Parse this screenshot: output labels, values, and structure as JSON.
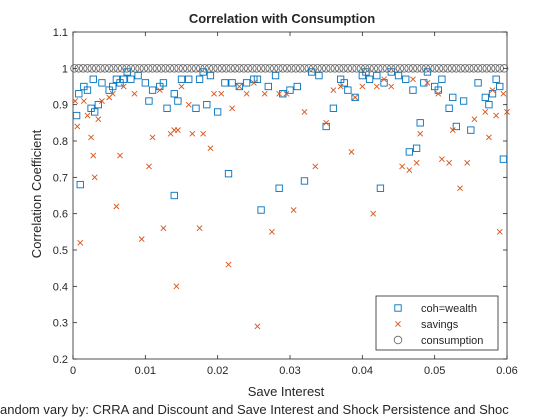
{
  "chart_data": {
    "type": "scatter",
    "title": "Correlation with Consumption",
    "xlabel": "Save Interest",
    "ylabel": "Correlation Coefficient",
    "footnote": "andom vary by: CRRA and Discount and Save Interest and Shock Persistence and Shoc",
    "xlim": [
      0,
      0.06
    ],
    "ylim": [
      0.2,
      1.1
    ],
    "xticks": [
      0,
      0.01,
      0.02,
      0.03,
      0.04,
      0.05,
      0.06
    ],
    "xtick_labels": [
      "0",
      "0.01",
      "0.02",
      "0.03",
      "0.04",
      "0.05",
      "0.06"
    ],
    "yticks": [
      0.2,
      0.3,
      0.4,
      0.5,
      0.6,
      0.7,
      0.8,
      0.9,
      1.0,
      1.1
    ],
    "ytick_labels": [
      "0.2",
      "0.3",
      "0.4",
      "0.5",
      "0.6",
      "0.7",
      "0.8",
      "0.9",
      "1",
      "1.1"
    ],
    "grid": false,
    "legend_position": "bottom-right",
    "series": [
      {
        "name": "coh=wealth",
        "marker": "square",
        "color": "#0072BD",
        "x": [
          0.0005,
          0.0008,
          0.001,
          0.0015,
          0.002,
          0.0025,
          0.0028,
          0.003,
          0.0035,
          0.004,
          0.005,
          0.0055,
          0.006,
          0.0065,
          0.007,
          0.0075,
          0.008,
          0.009,
          0.01,
          0.0105,
          0.011,
          0.012,
          0.0125,
          0.013,
          0.014,
          0.014,
          0.0145,
          0.015,
          0.016,
          0.017,
          0.0175,
          0.018,
          0.0185,
          0.019,
          0.02,
          0.021,
          0.0215,
          0.022,
          0.023,
          0.024,
          0.025,
          0.0255,
          0.026,
          0.027,
          0.028,
          0.0285,
          0.029,
          0.03,
          0.031,
          0.032,
          0.033,
          0.034,
          0.035,
          0.036,
          0.037,
          0.0375,
          0.038,
          0.039,
          0.04,
          0.0405,
          0.041,
          0.042,
          0.0425,
          0.043,
          0.044,
          0.045,
          0.046,
          0.0465,
          0.047,
          0.0475,
          0.048,
          0.0485,
          0.049,
          0.05,
          0.0505,
          0.051,
          0.052,
          0.0525,
          0.053,
          0.054,
          0.055,
          0.056,
          0.057,
          0.0575,
          0.058,
          0.0585,
          0.059,
          0.0595
        ],
        "y": [
          0.87,
          0.93,
          0.68,
          0.95,
          0.94,
          0.89,
          0.97,
          0.88,
          0.9,
          0.96,
          0.94,
          0.95,
          0.97,
          0.96,
          0.97,
          0.99,
          0.97,
          0.98,
          0.96,
          0.91,
          0.94,
          0.95,
          0.96,
          0.89,
          0.65,
          0.93,
          0.91,
          0.97,
          0.97,
          0.89,
          0.97,
          0.99,
          0.9,
          0.98,
          0.88,
          0.96,
          0.71,
          0.96,
          0.95,
          0.96,
          0.97,
          0.97,
          0.61,
          0.95,
          0.98,
          0.67,
          0.93,
          0.94,
          0.95,
          0.69,
          0.99,
          0.98,
          0.84,
          0.89,
          0.97,
          0.96,
          0.94,
          0.92,
          0.98,
          0.99,
          0.97,
          0.98,
          0.67,
          0.96,
          0.99,
          0.98,
          0.97,
          0.77,
          0.94,
          0.78,
          0.85,
          0.96,
          0.99,
          0.95,
          0.94,
          0.97,
          0.89,
          0.92,
          0.84,
          0.91,
          0.83,
          0.96,
          0.92,
          0.9,
          0.93,
          0.97,
          0.95,
          0.75
        ]
      },
      {
        "name": "savings",
        "marker": "x",
        "color": "#D95319",
        "x": [
          0.0003,
          0.0006,
          0.001,
          0.0015,
          0.002,
          0.0025,
          0.0028,
          0.003,
          0.0035,
          0.004,
          0.005,
          0.0055,
          0.006,
          0.0065,
          0.007,
          0.0085,
          0.0095,
          0.0105,
          0.011,
          0.012,
          0.0125,
          0.0135,
          0.014,
          0.0143,
          0.0145,
          0.015,
          0.016,
          0.0165,
          0.0175,
          0.018,
          0.019,
          0.0195,
          0.0205,
          0.0215,
          0.022,
          0.023,
          0.024,
          0.025,
          0.0255,
          0.0265,
          0.0275,
          0.0285,
          0.0295,
          0.0305,
          0.032,
          0.0335,
          0.035,
          0.036,
          0.037,
          0.0385,
          0.039,
          0.04,
          0.0415,
          0.042,
          0.043,
          0.044,
          0.0455,
          0.0465,
          0.047,
          0.0475,
          0.048,
          0.049,
          0.0505,
          0.051,
          0.052,
          0.0525,
          0.0535,
          0.0545,
          0.0555,
          0.057,
          0.0575,
          0.058,
          0.0585,
          0.059,
          0.0595,
          0.06
        ],
        "y": [
          0.91,
          0.84,
          0.52,
          0.91,
          0.87,
          0.81,
          0.76,
          0.7,
          0.86,
          0.91,
          0.92,
          0.93,
          0.62,
          0.76,
          0.95,
          0.93,
          0.53,
          0.73,
          0.81,
          0.94,
          0.56,
          0.82,
          0.83,
          0.4,
          0.83,
          0.95,
          0.9,
          0.82,
          0.56,
          0.82,
          0.78,
          0.93,
          0.93,
          0.46,
          0.89,
          0.95,
          0.93,
          0.96,
          0.29,
          0.93,
          0.55,
          0.93,
          0.93,
          0.61,
          0.88,
          0.73,
          0.85,
          0.94,
          0.95,
          0.77,
          0.92,
          0.95,
          0.6,
          0.95,
          0.97,
          0.95,
          0.73,
          0.72,
          0.97,
          0.74,
          0.82,
          0.96,
          0.93,
          0.75,
          0.74,
          0.83,
          0.67,
          0.74,
          0.86,
          0.88,
          0.81,
          0.94,
          0.87,
          0.55,
          0.93,
          0.88
        ]
      },
      {
        "name": "consumption",
        "marker": "circle",
        "color": "#6b6b6b",
        "x": [
          0.0002,
          0.0008,
          0.0014,
          0.002,
          0.0026,
          0.0032,
          0.0038,
          0.0044,
          0.005,
          0.0056,
          0.0062,
          0.0068,
          0.0074,
          0.008,
          0.0086,
          0.0092,
          0.0098,
          0.0104,
          0.011,
          0.0116,
          0.0122,
          0.0128,
          0.0134,
          0.014,
          0.0146,
          0.0152,
          0.0158,
          0.0164,
          0.017,
          0.0176,
          0.0182,
          0.0188,
          0.0194,
          0.02,
          0.0206,
          0.0212,
          0.0218,
          0.0224,
          0.023,
          0.0236,
          0.0242,
          0.0248,
          0.0254,
          0.026,
          0.0266,
          0.0272,
          0.0278,
          0.0284,
          0.029,
          0.0296,
          0.0302,
          0.0308,
          0.0314,
          0.032,
          0.0326,
          0.0332,
          0.0338,
          0.0344,
          0.035,
          0.0356,
          0.0362,
          0.0368,
          0.0374,
          0.038,
          0.0386,
          0.0392,
          0.0398,
          0.0404,
          0.041,
          0.0416,
          0.0422,
          0.0428,
          0.0434,
          0.044,
          0.0446,
          0.0452,
          0.0458,
          0.0464,
          0.047,
          0.0476,
          0.0482,
          0.0488,
          0.0494,
          0.05,
          0.0506,
          0.0512,
          0.0518,
          0.0524,
          0.053,
          0.0536,
          0.0542,
          0.0548,
          0.0554,
          0.056,
          0.0566,
          0.0572,
          0.0578,
          0.0584,
          0.059,
          0.0596
        ],
        "y": [
          1,
          1,
          1,
          1,
          1,
          1,
          1,
          1,
          1,
          1,
          1,
          1,
          1,
          1,
          1,
          1,
          1,
          1,
          1,
          1,
          1,
          1,
          1,
          1,
          1,
          1,
          1,
          1,
          1,
          1,
          1,
          1,
          1,
          1,
          1,
          1,
          1,
          1,
          1,
          1,
          1,
          1,
          1,
          1,
          1,
          1,
          1,
          1,
          1,
          1,
          1,
          1,
          1,
          1,
          1,
          1,
          1,
          1,
          1,
          1,
          1,
          1,
          1,
          1,
          1,
          1,
          1,
          1,
          1,
          1,
          1,
          1,
          1,
          1,
          1,
          1,
          1,
          1,
          1,
          1,
          1,
          1,
          1,
          1,
          1,
          1,
          1,
          1,
          1,
          1,
          1,
          1,
          1,
          1,
          1,
          1,
          1,
          1,
          1,
          1
        ]
      }
    ]
  }
}
